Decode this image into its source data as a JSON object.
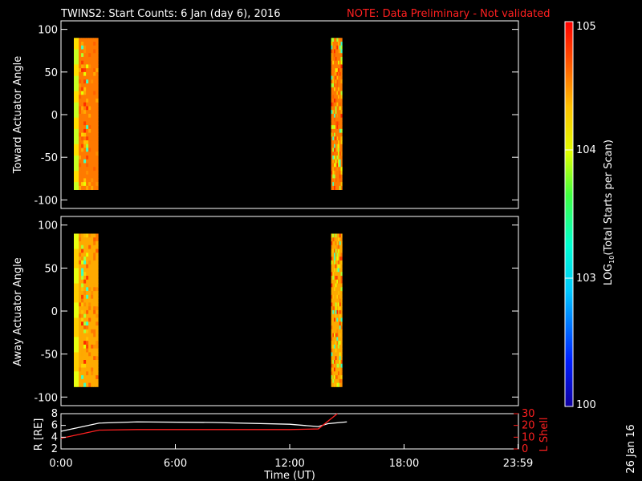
{
  "title": "TWINS2: Start Counts:  6 Jan (day   6), 2016",
  "note": "NOTE: Data Preliminary - Not validated",
  "side_label": "26 Jan 16",
  "colorbar": {
    "label": "LOG10(Total Starts per Scan)",
    "ticks": [
      {
        "label": "10^5",
        "value": 100000
      },
      {
        "label": "10^4",
        "value": 10000
      },
      {
        "label": "10^3",
        "value": 1000
      },
      {
        "label": "100",
        "value": 100
      }
    ]
  },
  "chart_data": [
    {
      "type": "heatmap",
      "ylabel": "Toward Actuator Angle",
      "ylim": [
        -110,
        110
      ],
      "yticks": [
        "100",
        "50",
        "0",
        "-50",
        "-100"
      ],
      "xlim": [
        0,
        24
      ],
      "coverage_hours": [
        [
          0.0,
          2.2
        ],
        [
          13.5,
          15.0
        ]
      ],
      "angle_range": [
        -88,
        90
      ],
      "dominant_color": "#ff7a00"
    },
    {
      "type": "heatmap",
      "ylabel": "Away Actuator Angle",
      "ylim": [
        -110,
        110
      ],
      "yticks": [
        "100",
        "50",
        "0",
        "-50",
        "-100"
      ],
      "xlim": [
        0,
        24
      ],
      "coverage_hours": [
        [
          0.0,
          2.2
        ],
        [
          13.5,
          15.0
        ]
      ],
      "angle_range": [
        -88,
        90
      ],
      "dominant_color": "#ffaa00"
    },
    {
      "type": "line",
      "ylabel": "R [RE]",
      "y2label": "L Shell",
      "ylim": [
        2,
        8
      ],
      "y2lim": [
        0,
        30
      ],
      "yticks": [
        "8",
        "6",
        "4",
        "2"
      ],
      "y2ticks": [
        "30",
        "20",
        "10",
        "0"
      ],
      "xlabel": "Time (UT)",
      "xticks": [
        "0:00",
        "6:00",
        "12:00",
        "18:00",
        "23:59"
      ],
      "series": [
        {
          "name": "R [RE]",
          "color": "#ffffff",
          "x": [
            0.0,
            2.0,
            4.0,
            8.0,
            12.0,
            13.5,
            14.0,
            15.0
          ],
          "y": [
            5.0,
            6.4,
            6.6,
            6.5,
            6.2,
            5.8,
            6.3,
            6.6
          ]
        },
        {
          "name": "L Shell",
          "color": "#ff2020",
          "x": [
            0.0,
            2.0,
            4.0,
            8.0,
            12.0,
            13.5,
            14.5
          ],
          "y": [
            9,
            16,
            16.5,
            16.5,
            16.5,
            17,
            30
          ]
        }
      ]
    }
  ]
}
